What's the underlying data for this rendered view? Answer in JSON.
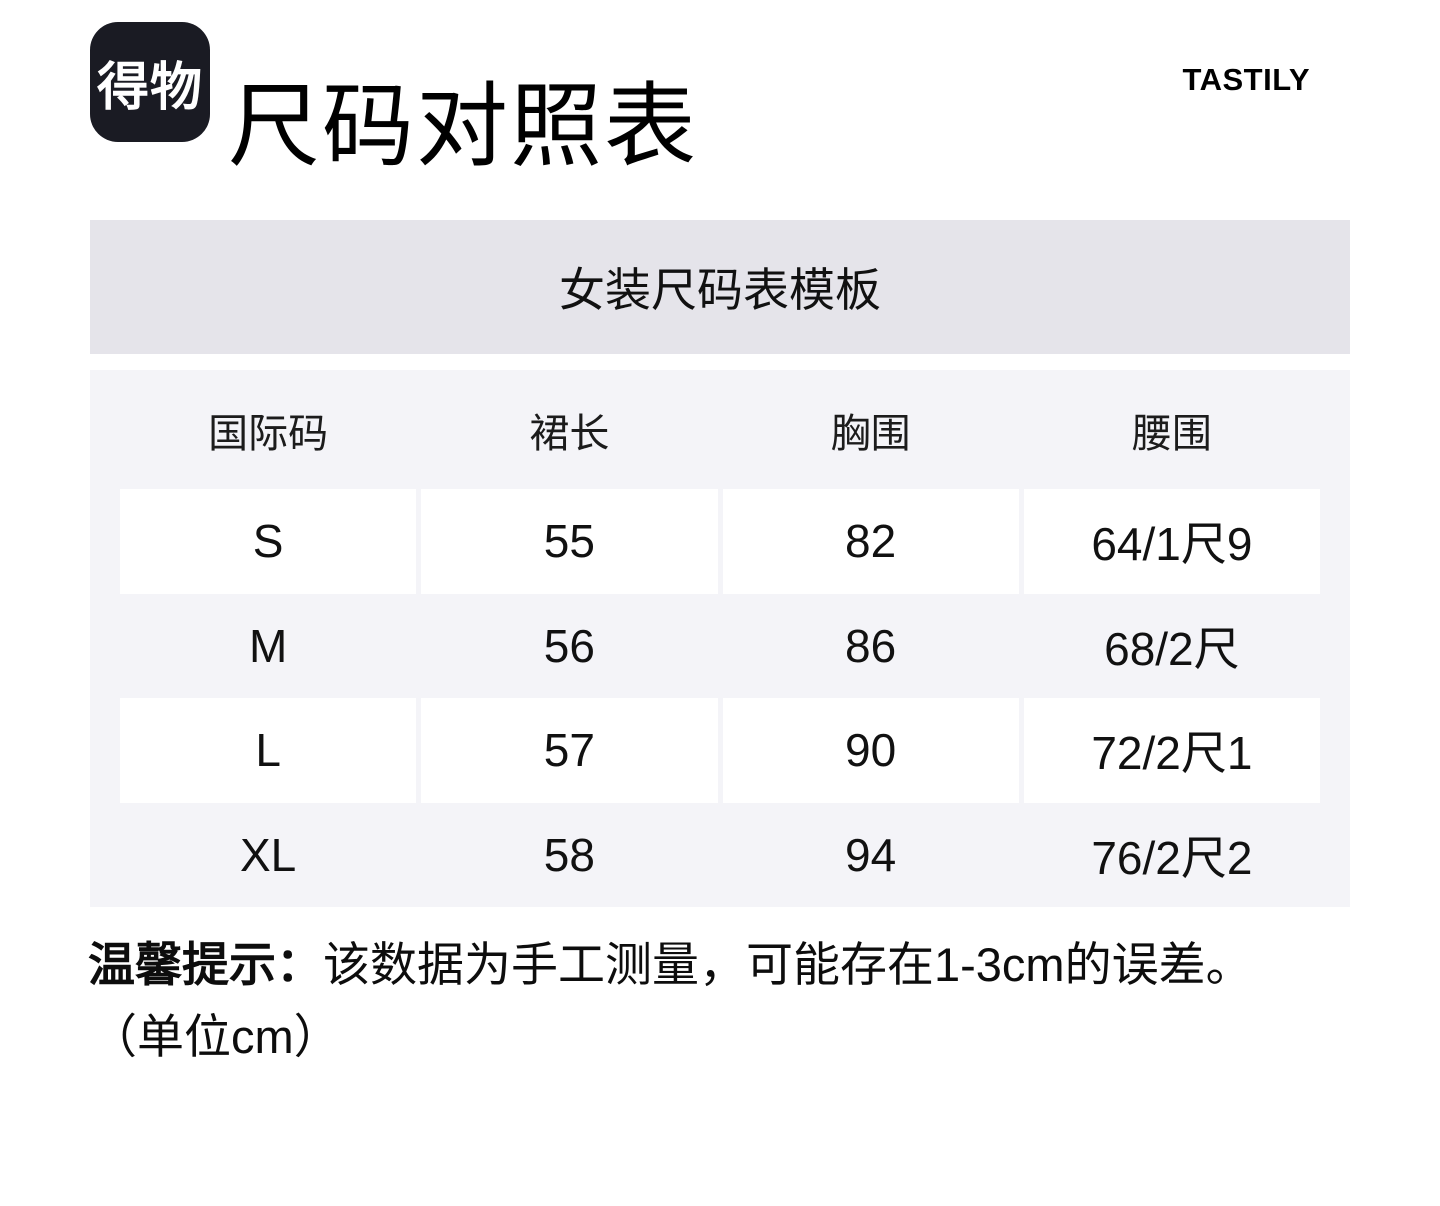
{
  "header": {
    "logo_text": "得物",
    "page_title": "尺码对照表",
    "brand": "TASTILY"
  },
  "size_chart": {
    "title": "女装尺码表模板",
    "columns": [
      "国际码",
      "裙长",
      "胸围",
      "腰围"
    ],
    "rows": [
      [
        "S",
        "55",
        "82",
        "64/1尺9"
      ],
      [
        "M",
        "56",
        "86",
        "68/2尺"
      ],
      [
        "L",
        "57",
        "90",
        "72/2尺1"
      ],
      [
        "XL",
        "58",
        "94",
        "76/2尺2"
      ]
    ]
  },
  "note": {
    "label": "温馨提示：",
    "text": "该数据为手工测量，可能存在1-3cm的误差。",
    "unit_line": "（单位cm）"
  },
  "colors": {
    "logo_bg": "#1a1b23",
    "title_band_bg": "#e5e4ea",
    "table_band_bg": "#f4f4f8",
    "cell_bg": "#ffffff",
    "text": "#0d0d0d"
  }
}
